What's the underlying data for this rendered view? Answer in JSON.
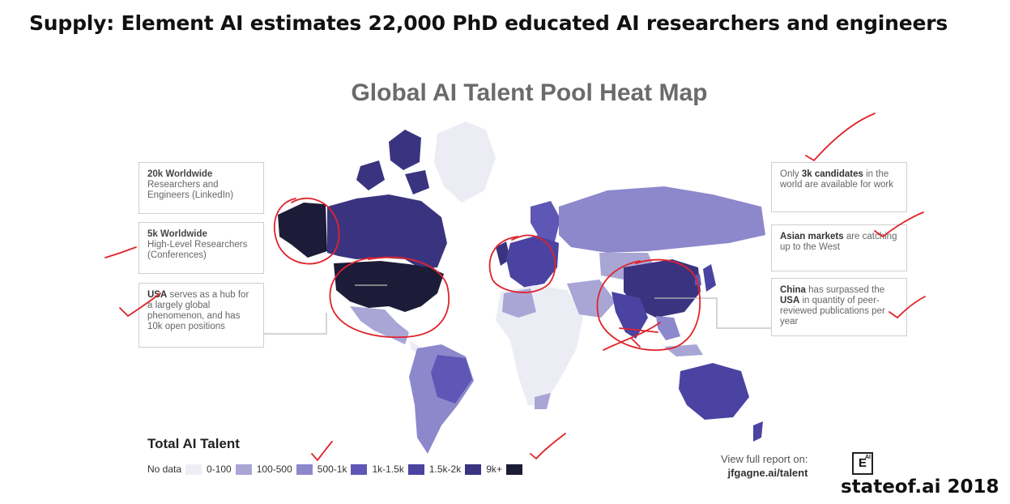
{
  "headline": "Supply: Element AI estimates 22,000 PhD educated AI researchers and engineers",
  "map_title": "Global AI Talent Pool Heat Map",
  "callouts": {
    "worldwide_20k": {
      "head": "20k Worldwide",
      "body": "Researchers and Engineers (LinkedIn)"
    },
    "worldwide_5k": {
      "head": "5k Worldwide",
      "body": "High-Level Researchers (Conferences)"
    },
    "usa_hub": {
      "bold": "USA",
      "body": " serves as a hub for a largely global phenomenon, and has 10k open positions"
    },
    "candidates": {
      "pre": "Only ",
      "bold": "3k candidates",
      "body": " in the world are available for work"
    },
    "asian_markets": {
      "bold": "Asian markets",
      "body": " are catching up to the West"
    },
    "china": {
      "bold": "China",
      "mid": " has surpassed the ",
      "bold2": "USA",
      "body": " in quantity of peer-reviewed publications per year"
    }
  },
  "legend": {
    "title": "Total AI Talent",
    "items": [
      {
        "label": "No data",
        "color": "#eeeef6"
      },
      {
        "label": "0-100",
        "color": "#a9a6d6"
      },
      {
        "label": "100-500",
        "color": "#8d88cc"
      },
      {
        "label": "500-1k",
        "color": "#5e57b5"
      },
      {
        "label": "1k-1.5k",
        "color": "#4a43a1"
      },
      {
        "label": "1.5k-2k",
        "color": "#3a3480"
      },
      {
        "label": "9k+",
        "color": "#1c1c38"
      }
    ]
  },
  "report": {
    "line1": "View full report on:",
    "url": "jfgagne.ai/talent"
  },
  "logo": {
    "letter": "E",
    "sup": "AI"
  },
  "footer": "stateof.ai 2018",
  "colors": {
    "nodata": "#eeeef6",
    "c0": "#a9a6d6",
    "c1": "#8d88cc",
    "c2": "#5e57b5",
    "c3": "#4a43a1",
    "c4": "#3a3480",
    "c9k": "#1c1c38",
    "ink": "#e0232b"
  }
}
